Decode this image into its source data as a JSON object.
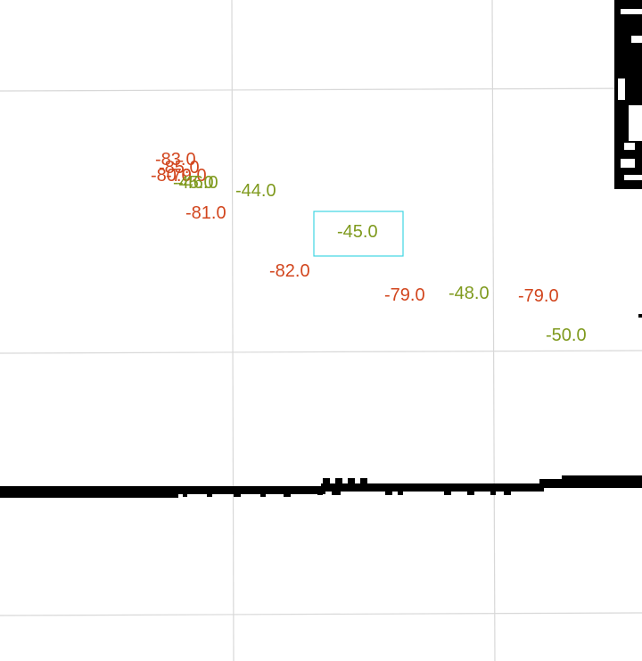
{
  "map": {
    "colors": {
      "background": "#ffffff",
      "grid": "#d8d8d8",
      "wall": "#000000",
      "strong_signal": "#7f9a1e",
      "weak_signal": "#d2461e",
      "selection": "#3fd6e2"
    },
    "selected_reading": {
      "value": "-45.0",
      "strength": "strong"
    },
    "readings": [
      {
        "value": "-83.0",
        "strength": "weak"
      },
      {
        "value": "-85.0",
        "strength": "weak"
      },
      {
        "value": "-80.0",
        "strength": "weak"
      },
      {
        "value": "-79.0",
        "strength": "weak"
      },
      {
        "value": "-46.0",
        "strength": "strong"
      },
      {
        "value": "-45.0",
        "strength": "strong"
      },
      {
        "value": "-44.0",
        "strength": "strong"
      },
      {
        "value": "-81.0",
        "strength": "weak"
      },
      {
        "value": "-82.0",
        "strength": "weak"
      },
      {
        "value": "-79.0",
        "strength": "weak"
      },
      {
        "value": "-48.0",
        "strength": "strong"
      },
      {
        "value": "-79.0",
        "strength": "weak"
      },
      {
        "value": "-50.0",
        "strength": "strong"
      }
    ]
  }
}
